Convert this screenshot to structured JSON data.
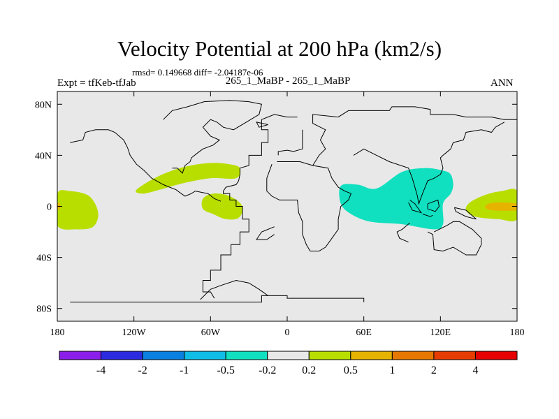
{
  "header": {
    "title": "Velocity Potential at 200 hPa (km2/s)",
    "stats": "rmsd= 0.149668 diff= -2.04187e-06",
    "case_line": "265_1_MaBP - 265_1_MaBP",
    "expt": "Expt = tfKeb-tfJab",
    "period": "ANN"
  },
  "chart_data": {
    "type": "heatmap",
    "title": "Velocity Potential at 200 hPa (km2/s)",
    "subtitle": "265_1_MaBP - 265_1_MaBP",
    "xlabel": "",
    "ylabel": "",
    "xlim": [
      -180,
      180
    ],
    "ylim": [
      -90,
      90
    ],
    "x_ticks": [
      {
        "value": -180,
        "label": "180"
      },
      {
        "value": -120,
        "label": "120W"
      },
      {
        "value": -60,
        "label": "60W"
      },
      {
        "value": 0,
        "label": "0"
      },
      {
        "value": 60,
        "label": "60E"
      },
      {
        "value": 120,
        "label": "120E"
      },
      {
        "value": 180,
        "label": "180"
      }
    ],
    "y_ticks": [
      {
        "value": 80,
        "label": "80N"
      },
      {
        "value": 40,
        "label": "40N"
      },
      {
        "value": 0,
        "label": "0"
      },
      {
        "value": -40,
        "label": "40S"
      },
      {
        "value": -80,
        "label": "80S"
      }
    ],
    "grid": false,
    "background_color": "#e8e8e8",
    "colorbar": {
      "placement": "bottom",
      "labels": [
        "-4",
        "-2",
        "-1",
        "-0.5",
        "-0.2",
        "0.2",
        "0.5",
        "1",
        "2",
        "4"
      ],
      "colors": [
        "#8b1ee8",
        "#2b2be0",
        "#0a80e0",
        "#10bde6",
        "#10e0bf",
        "#e8e8e8",
        "#b8de00",
        "#e6b400",
        "#e67800",
        "#e63c00",
        "#e60000"
      ]
    },
    "regions": [
      {
        "level": "0.2 to 0.5",
        "color": "#b8de00",
        "points": [
          [
            -180,
            10
          ],
          [
            -170,
            12
          ],
          [
            -155,
            8
          ],
          [
            -148,
            -5
          ],
          [
            -152,
            -16
          ],
          [
            -165,
            -18
          ],
          [
            -180,
            -15
          ]
        ]
      },
      {
        "level": "0.2 to 0.5",
        "color": "#b8de00",
        "points": [
          [
            -118,
            13
          ],
          [
            -100,
            24
          ],
          [
            -80,
            31
          ],
          [
            -60,
            34
          ],
          [
            -45,
            33
          ],
          [
            -37,
            30
          ],
          [
            -40,
            22
          ],
          [
            -60,
            22
          ],
          [
            -82,
            18
          ],
          [
            -100,
            13
          ],
          [
            -113,
            10
          ]
        ]
      },
      {
        "level": "0.2 to 0.5",
        "color": "#b8de00",
        "points": [
          [
            -66,
            6
          ],
          [
            -58,
            10
          ],
          [
            -45,
            8
          ],
          [
            -35,
            0
          ],
          [
            -38,
            -9
          ],
          [
            -48,
            -10
          ],
          [
            -58,
            -6
          ],
          [
            -66,
            -2
          ]
        ]
      },
      {
        "level": "0.2 to 0.5",
        "color": "#b8de00",
        "points": [
          [
            180,
            12
          ],
          [
            168,
            12
          ],
          [
            155,
            9
          ],
          [
            143,
            3
          ],
          [
            140,
            -3
          ],
          [
            147,
            -8
          ],
          [
            165,
            -10
          ],
          [
            180,
            -10
          ]
        ]
      },
      {
        "level": "0.5 to 1",
        "color": "#e6b400",
        "points": [
          [
            -180,
            2
          ],
          [
            -178,
            2
          ],
          [
            -178,
            -2
          ],
          [
            -180,
            -2
          ]
        ]
      },
      {
        "level": "0.5 to 1",
        "color": "#e6b400",
        "points": [
          [
            180,
            2
          ],
          [
            162,
            3
          ],
          [
            155,
            0
          ],
          [
            160,
            -3
          ],
          [
            180,
            -3
          ]
        ]
      },
      {
        "level": "-0.5 to -0.2",
        "color": "#10e0bf",
        "points": [
          [
            42,
            16
          ],
          [
            55,
            17
          ],
          [
            70,
            14
          ],
          [
            90,
            27
          ],
          [
            108,
            30
          ],
          [
            122,
            28
          ],
          [
            128,
            25
          ],
          [
            130,
            17
          ],
          [
            128,
            10
          ],
          [
            122,
            2
          ],
          [
            122,
            -14
          ],
          [
            115,
            -18
          ],
          [
            90,
            -14
          ],
          [
            65,
            -12
          ],
          [
            50,
            -6
          ],
          [
            42,
            2
          ]
        ]
      }
    ]
  },
  "coastlines": [
    [
      [
        -170,
        -75
      ],
      [
        -20,
        -75
      ],
      [
        -20,
        -70
      ],
      [
        0,
        -70
      ],
      [
        0,
        -72
      ],
      [
        60,
        -72
      ],
      [
        60,
        -75
      ]
    ],
    [
      [
        -68,
        -73
      ],
      [
        -60,
        -65
      ],
      [
        -52,
        -62
      ],
      [
        -40,
        -58
      ],
      [
        -30,
        -60
      ],
      [
        -22,
        -65
      ],
      [
        -15,
        -70
      ]
    ],
    [
      [
        -57,
        -72
      ],
      [
        -60,
        -67
      ],
      [
        -66,
        -67
      ],
      [
        -66,
        -58
      ],
      [
        -60,
        -58
      ],
      [
        -60,
        -50
      ],
      [
        -52,
        -50
      ],
      [
        -52,
        -38
      ],
      [
        -44,
        -38
      ],
      [
        -44,
        -30
      ],
      [
        -37,
        -30
      ],
      [
        -37,
        -20
      ],
      [
        -30,
        -20
      ],
      [
        -30,
        -10
      ],
      [
        -35,
        -10
      ],
      [
        -35,
        0
      ],
      [
        -40,
        0
      ],
      [
        -40,
        5
      ],
      [
        -45,
        5
      ],
      [
        -45,
        10
      ],
      [
        -50,
        10
      ],
      [
        -50,
        12
      ],
      [
        -48,
        15
      ],
      [
        -40,
        17
      ],
      [
        -38,
        20
      ],
      [
        -37,
        25
      ],
      [
        -37,
        30
      ],
      [
        -30,
        32
      ],
      [
        -30,
        40
      ],
      [
        -20,
        40
      ],
      [
        -20,
        50
      ],
      [
        -15,
        50
      ],
      [
        -15,
        60
      ],
      [
        -20,
        60
      ],
      [
        -20,
        68
      ],
      [
        -10,
        72
      ],
      [
        0,
        70
      ],
      [
        8,
        70
      ]
    ],
    [
      [
        -7,
        40
      ],
      [
        -7,
        43
      ],
      [
        0,
        44
      ],
      [
        5,
        43
      ],
      [
        12,
        45
      ],
      [
        12,
        60
      ]
    ],
    [
      [
        -12,
        33
      ],
      [
        -16,
        22
      ],
      [
        -16,
        12
      ],
      [
        -12,
        8
      ],
      [
        -6,
        5
      ],
      [
        0,
        5
      ],
      [
        8,
        5
      ],
      [
        9,
        -5
      ],
      [
        12,
        -12
      ],
      [
        12,
        -22
      ],
      [
        15,
        -30
      ],
      [
        18,
        -35
      ],
      [
        25,
        -35
      ],
      [
        30,
        -32
      ],
      [
        35,
        -25
      ],
      [
        40,
        -18
      ],
      [
        40,
        -10
      ],
      [
        42,
        0
      ],
      [
        48,
        5
      ],
      [
        50,
        10
      ],
      [
        45,
        12
      ],
      [
        40,
        15
      ],
      [
        35,
        22
      ],
      [
        32,
        30
      ],
      [
        20,
        32
      ],
      [
        10,
        35
      ],
      [
        0,
        35
      ],
      [
        -8,
        35
      ]
    ],
    [
      [
        20,
        32
      ],
      [
        25,
        40
      ],
      [
        30,
        45
      ],
      [
        26,
        52
      ],
      [
        30,
        60
      ],
      [
        20,
        65
      ],
      [
        20,
        72
      ],
      [
        40,
        70
      ],
      [
        48,
        75
      ],
      [
        80,
        75
      ],
      [
        82,
        78
      ],
      [
        100,
        78
      ],
      [
        112,
        76
      ],
      [
        112,
        72
      ],
      [
        130,
        72
      ],
      [
        140,
        70
      ],
      [
        160,
        70
      ],
      [
        170,
        68
      ],
      [
        180,
        68
      ]
    ],
    [
      [
        52,
        40
      ],
      [
        60,
        45
      ],
      [
        70,
        40
      ],
      [
        80,
        35
      ],
      [
        95,
        30
      ],
      [
        98,
        22
      ],
      [
        100,
        15
      ],
      [
        102,
        8
      ],
      [
        103,
        2
      ],
      [
        106,
        10
      ],
      [
        108,
        15
      ],
      [
        110,
        20
      ],
      [
        115,
        22
      ],
      [
        120,
        25
      ],
      [
        122,
        30
      ],
      [
        120,
        38
      ],
      [
        122,
        40
      ],
      [
        128,
        45
      ],
      [
        130,
        50
      ],
      [
        138,
        52
      ],
      [
        140,
        58
      ],
      [
        152,
        60
      ],
      [
        160,
        58
      ],
      [
        163,
        62
      ],
      [
        170,
        66
      ]
    ],
    [
      [
        110,
        -20
      ],
      [
        114,
        -22
      ],
      [
        115,
        -34
      ],
      [
        122,
        -35
      ],
      [
        130,
        -32
      ],
      [
        135,
        -35
      ],
      [
        140,
        -38
      ],
      [
        148,
        -38
      ],
      [
        152,
        -30
      ],
      [
        152,
        -25
      ],
      [
        145,
        -18
      ],
      [
        140,
        -15
      ],
      [
        135,
        -12
      ],
      [
        130,
        -12
      ],
      [
        125,
        -15
      ],
      [
        115,
        -20
      ]
    ],
    [
      [
        96,
        5
      ],
      [
        100,
        2
      ],
      [
        105,
        -5
      ],
      [
        98,
        -3
      ],
      [
        95,
        3
      ]
    ],
    [
      [
        106,
        -6
      ],
      [
        112,
        -8
      ],
      [
        114,
        -7
      ]
    ],
    [
      [
        110,
        2
      ],
      [
        118,
        5
      ],
      [
        119,
        0
      ],
      [
        116,
        -4
      ],
      [
        110,
        -2
      ],
      [
        110,
        2
      ]
    ],
    [
      [
        131,
        -1
      ],
      [
        140,
        -3
      ],
      [
        148,
        -10
      ],
      [
        140,
        -8
      ],
      [
        132,
        -4
      ],
      [
        131,
        -1
      ]
    ],
    [
      [
        96,
        -13
      ],
      [
        90,
        -18
      ],
      [
        86,
        -20
      ],
      [
        88,
        -25
      ],
      [
        95,
        -28
      ]
    ],
    [
      [
        -10,
        -16
      ],
      [
        -20,
        -20
      ],
      [
        -24,
        -26
      ],
      [
        -16,
        -26
      ],
      [
        -10,
        -22
      ]
    ],
    [
      [
        -170,
        50
      ],
      [
        -160,
        52
      ],
      [
        -158,
        58
      ],
      [
        -150,
        60
      ],
      [
        -140,
        60
      ],
      [
        -135,
        58
      ],
      [
        -128,
        52
      ],
      [
        -125,
        46
      ],
      [
        -123,
        40
      ],
      [
        -118,
        33
      ],
      [
        -112,
        28
      ],
      [
        -106,
        22
      ],
      [
        -97,
        17
      ],
      [
        -92,
        15
      ],
      [
        -87,
        13
      ],
      [
        -83,
        10
      ],
      [
        -80,
        8
      ],
      [
        -75,
        10
      ],
      [
        -72,
        12
      ],
      [
        -62,
        10
      ],
      [
        -57,
        6
      ],
      [
        -52,
        4
      ]
    ],
    [
      [
        -97,
        68
      ],
      [
        -90,
        75
      ],
      [
        -78,
        78
      ],
      [
        -65,
        82
      ],
      [
        -45,
        83
      ],
      [
        -30,
        82
      ],
      [
        -20,
        80
      ],
      [
        -22,
        72
      ],
      [
        -32,
        66
      ],
      [
        -42,
        60
      ],
      [
        -50,
        62
      ],
      [
        -55,
        66
      ],
      [
        -60,
        68
      ],
      [
        -66,
        62
      ],
      [
        -60,
        55
      ],
      [
        -53,
        52
      ],
      [
        -58,
        48
      ],
      [
        -66,
        45
      ],
      [
        -70,
        42
      ],
      [
        -75,
        38
      ],
      [
        -76,
        35
      ],
      [
        -80,
        32
      ],
      [
        -82,
        26
      ],
      [
        -86,
        30
      ],
      [
        -90,
        30
      ]
    ],
    [
      [
        -15,
        64
      ],
      [
        -24,
        66
      ],
      [
        -22,
        62
      ],
      [
        -15,
        64
      ]
    ]
  ]
}
